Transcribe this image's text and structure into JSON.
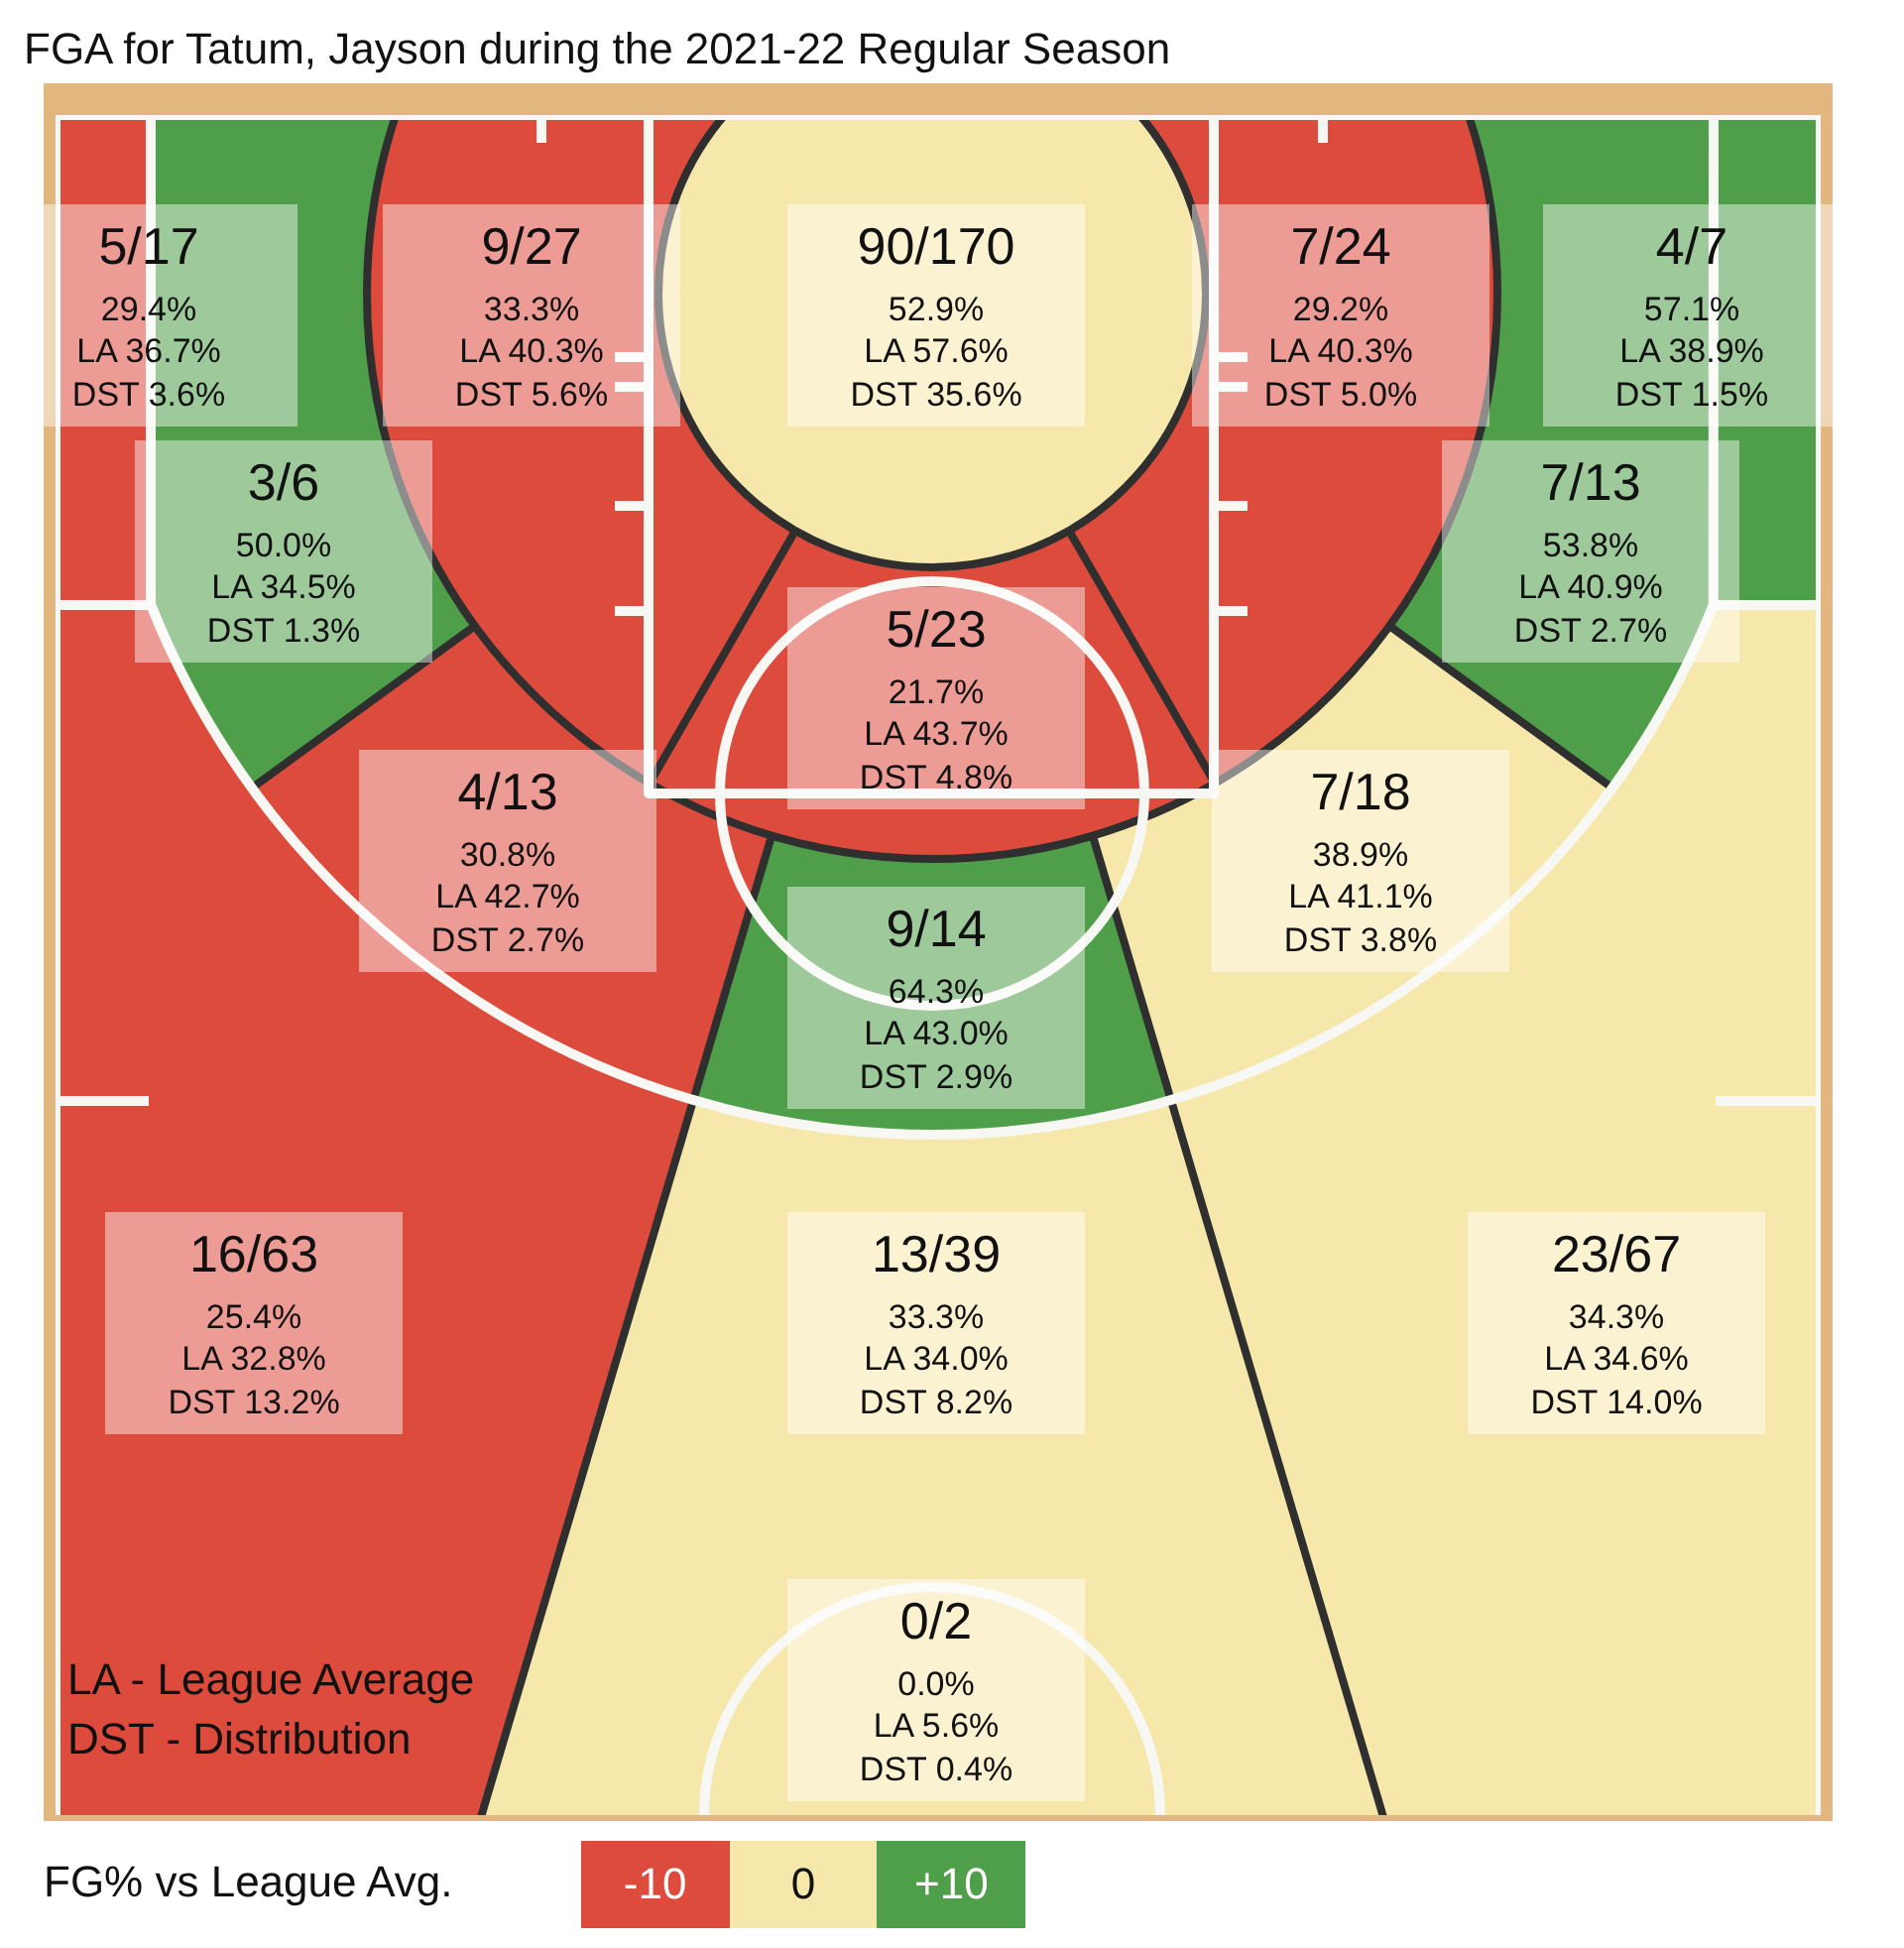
{
  "chart_data": {
    "type": "other",
    "title": "FGA for Tatum, Jayson during the 2021-22 Regular Season",
    "categories": [
      "5/17",
      "9/27",
      "90/170",
      "7/24",
      "4/7",
      "3/6",
      "7/13",
      "5/23",
      "4/13",
      "7/18",
      "9/14",
      "16/63",
      "13/39",
      "23/67",
      "0/2"
    ],
    "series": [
      {
        "values": [
          29.4,
          33.3,
          52.9,
          29.2,
          57.1,
          50.0,
          53.8,
          21.7,
          30.8,
          38.9,
          64.3,
          25.4,
          33.3,
          34.3,
          0.0
        ],
        "value_labels": [
          "29.4%",
          "33.3%",
          "52.9%",
          "29.2%",
          "57.1%",
          "50.0%",
          "53.8%",
          "21.7%",
          "30.8%",
          "38.9%",
          "64.3%",
          "25.4%",
          "33.3%",
          "34.3%",
          "0.0%"
        ]
      },
      {
        "values": [
          36.7,
          40.3,
          57.6,
          40.3,
          38.9,
          34.5,
          40.9,
          43.7,
          42.7,
          41.1,
          43.0,
          32.8,
          34.0,
          34.6,
          5.6
        ],
        "value_labels": [
          "LA 36.7%",
          "LA 40.3%",
          "LA 57.6%",
          "LA 40.3%",
          "LA 38.9%",
          "LA 34.5%",
          "LA 40.9%",
          "LA 43.7%",
          "LA 42.7%",
          "LA 41.1%",
          "LA 43.0%",
          "LA 32.8%",
          "LA 34.0%",
          "LA 34.6%",
          "LA 5.6%"
        ]
      },
      {
        "values": [
          3.6,
          5.6,
          35.6,
          5.0,
          1.5,
          1.3,
          2.7,
          4.8,
          2.7,
          3.8,
          2.9,
          13.2,
          8.2,
          14.0,
          0.4
        ],
        "value_labels": [
          "DST 3.6%",
          "DST 5.6%",
          "DST 35.6%",
          "DST 5.0%",
          "DST 1.5%",
          "DST 1.3%",
          "DST 2.7%",
          "DST 4.8%",
          "DST 2.7%",
          "DST 3.8%",
          "DST 2.9%",
          "DST 13.2%",
          "DST 8.2%",
          "DST 14.0%",
          "DST 0.4%"
        ]
      }
    ],
    "colors": [
      "#dd4b3c",
      "#dd4b3c",
      "#f6e8ab",
      "#dd4b3c",
      "#4f9e49",
      "#4f9e49",
      "#4f9e49",
      "#dd4b3c",
      "#dd4b3c",
      "#f6e8ab",
      "#4f9e49",
      "#dd4b3c",
      "#f6e8ab",
      "#f6e8ab",
      "#f6e8ab"
    ],
    "clabel": "FG% vs League Avg.",
    "annotations": [
      "LA - League Average",
      "DST - Distribution",
      "-10",
      "0",
      "+10"
    ]
  }
}
